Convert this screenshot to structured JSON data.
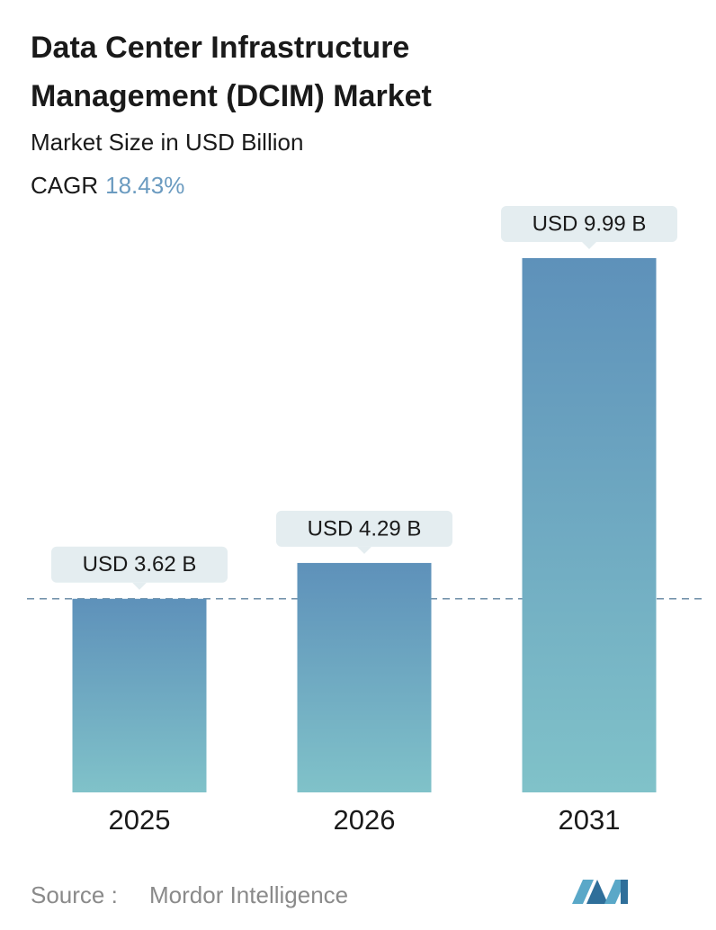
{
  "chart_data": {
    "type": "bar",
    "title": "Data Center Infrastructure Management (DCIM) Market",
    "subtitle": "Market Size in USD Billion",
    "cagr_label": "CAGR",
    "cagr_value": "18.43%",
    "categories": [
      "2025",
      "2026",
      "2031"
    ],
    "values": [
      3.62,
      4.29,
      9.99
    ],
    "value_labels": [
      "USD 3.62 B",
      "USD 4.29 B",
      "USD 9.99 B"
    ],
    "gradient": [
      "#5e91ba",
      "#80c2c9"
    ],
    "source_label": "Source :",
    "source": "Mordor Intelligence"
  }
}
